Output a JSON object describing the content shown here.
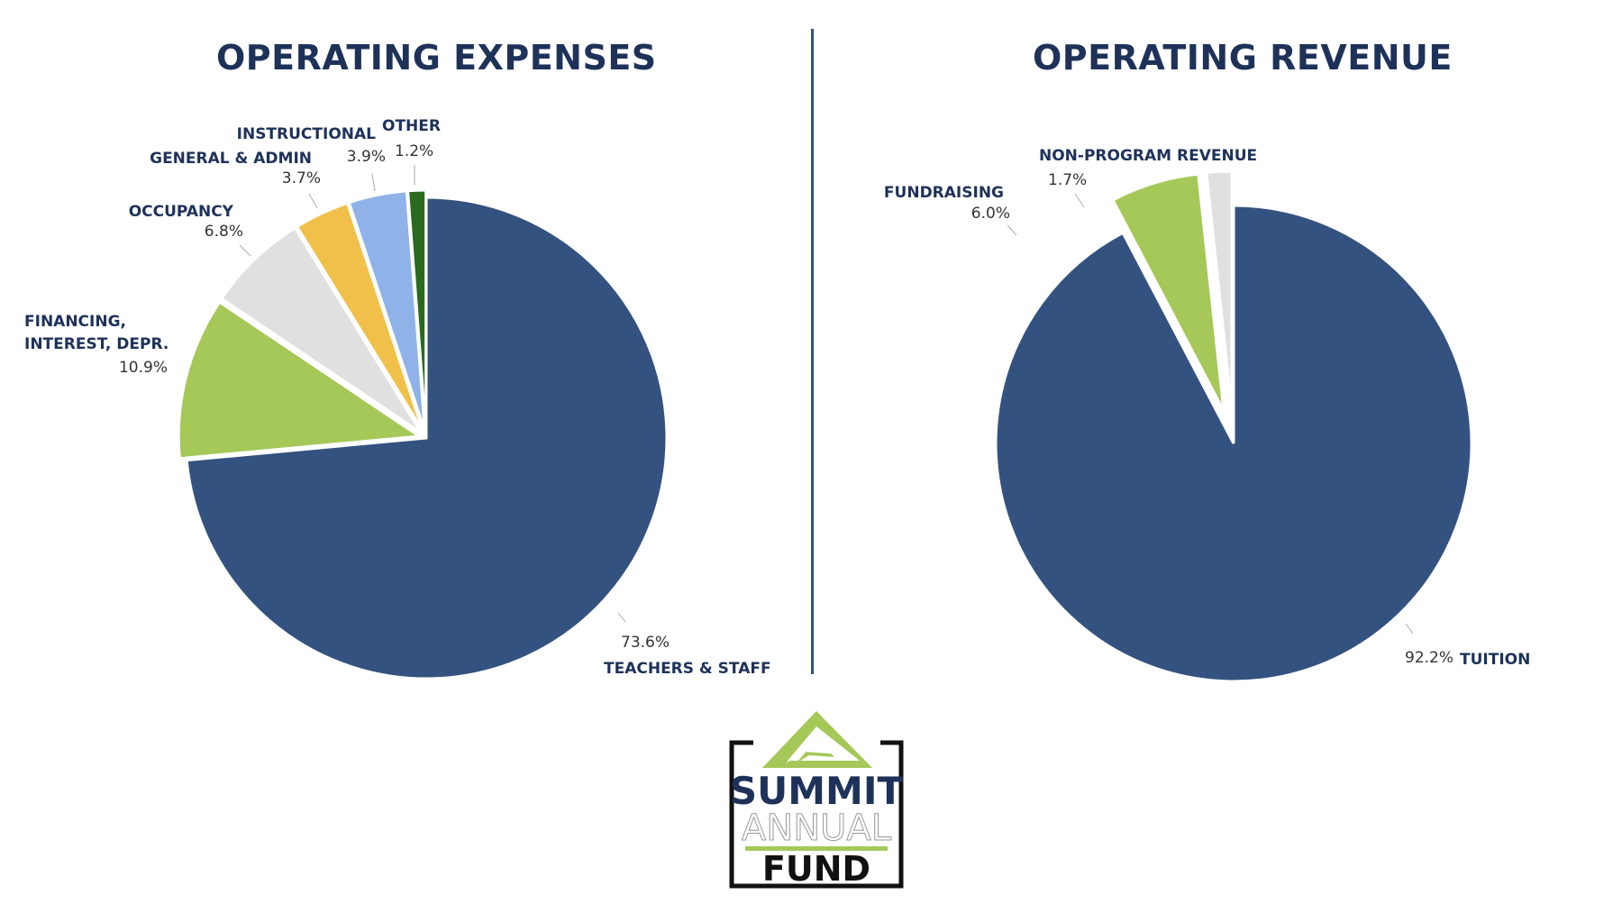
{
  "colors": {
    "navy": "#34527f",
    "green": "#a5c858",
    "lightgray": "#e0e0e0",
    "gold": "#f0c04a",
    "lightblue": "#8fb3e8",
    "darkgreen": "#2a6a1c",
    "title": "#1e3259"
  },
  "chart_data": [
    {
      "type": "pie",
      "title": "OPERATING EXPENSES",
      "slices": [
        {
          "name": "TEACHERS & STAFF",
          "value": 73.6,
          "label": "73.6%",
          "color": "#34527f"
        },
        {
          "name": "FINANCING, INTEREST, DEPR.",
          "value": 10.9,
          "label": "10.9%",
          "color": "#a5c858"
        },
        {
          "name": "OCCUPANCY",
          "value": 6.8,
          "label": "6.8%",
          "color": "#e0e0e0"
        },
        {
          "name": "GENERAL & ADMIN",
          "value": 3.7,
          "label": "3.7%",
          "color": "#f0c04a"
        },
        {
          "name": "INSTRUCTIONAL",
          "value": 3.9,
          "label": "3.9%",
          "color": "#8fb3e8"
        },
        {
          "name": "OTHER",
          "value": 1.2,
          "label": "1.2%",
          "color": "#2a6a1c"
        }
      ]
    },
    {
      "type": "pie",
      "title": "OPERATING REVENUE",
      "slices": [
        {
          "name": "TUITION",
          "value": 92.2,
          "label": "92.2%",
          "color": "#34527f"
        },
        {
          "name": "FUNDRAISING",
          "value": 6.0,
          "label": "6.0%",
          "color": "#a5c858"
        },
        {
          "name": "NON-PROGRAM REVENUE",
          "value": 1.7,
          "label": "1.7%",
          "color": "#e0e0e0"
        }
      ]
    }
  ],
  "logo": {
    "line1": "SUMMIT",
    "line2": "ANNUAL",
    "line3": "FUND"
  }
}
